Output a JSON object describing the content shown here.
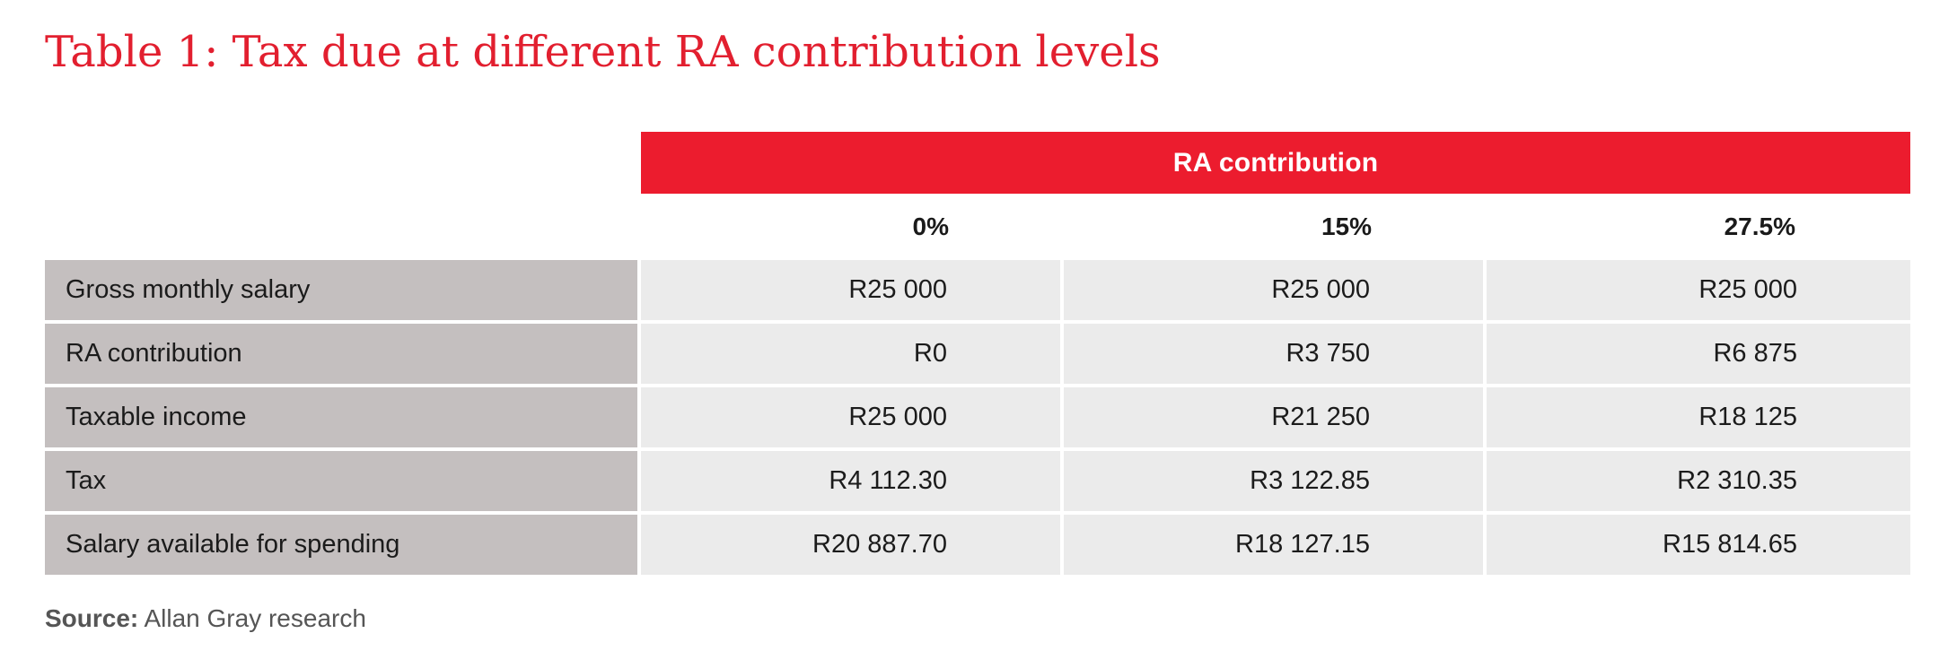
{
  "title": "Table 1: Tax due at different RA contribution levels",
  "table": {
    "group_header": "RA contribution",
    "columns": [
      "0%",
      "15%",
      "27.5%"
    ],
    "rows": [
      {
        "label": "Gross monthly salary",
        "values": [
          "R25 000",
          "R25 000",
          "R25 000"
        ]
      },
      {
        "label": "RA contribution",
        "values": [
          "R0",
          "R3 750",
          "R6 875"
        ]
      },
      {
        "label": "Taxable income",
        "values": [
          "R25 000",
          "R21 250",
          "R18 125"
        ]
      },
      {
        "label": "Tax",
        "values": [
          "R4 112.30",
          "R3 122.85",
          "R2 310.35"
        ]
      },
      {
        "label": "Salary available for spending",
        "values": [
          "R20 887.70",
          "R18 127.15",
          "R15 814.65"
        ]
      }
    ]
  },
  "source": {
    "label": "Source:",
    "text": "Allan Gray research"
  },
  "colors": {
    "accent_red": "#ec1c2e",
    "title_red": "#e21f2f",
    "label_cell_bg": "#c4bfbf",
    "value_cell_bg": "#ebebeb"
  }
}
